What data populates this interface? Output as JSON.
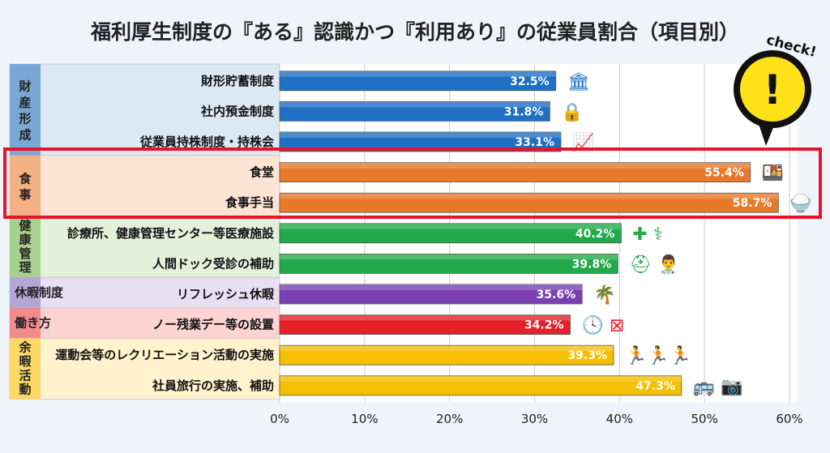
{
  "chart_data": {
    "type": "bar",
    "orientation": "horizontal",
    "title": "福利厚生制度の『ある』認識かつ『利用あり』の従業員割合（項目別）",
    "xlim": [
      0,
      60
    ],
    "xticks": [
      "0%",
      "10%",
      "20%",
      "30%",
      "40%",
      "50%",
      "60%"
    ],
    "grid": true,
    "groups": [
      {
        "name": "財産形成",
        "color": "#1f6fc5",
        "items": [
          {
            "label": "財形貯蓄制度",
            "value": 32.5,
            "icon": "bank-coins-icon"
          },
          {
            "label": "社内預金制度",
            "value": 31.8,
            "icon": "safe-icon"
          },
          {
            "label": "従業員持株制度・持株会",
            "value": 33.1,
            "icon": "stock-chart-icon"
          }
        ]
      },
      {
        "name": "食事",
        "color": "#e8792a",
        "items": [
          {
            "label": "食堂",
            "value": 55.4,
            "icon": "meal-tray-icon"
          },
          {
            "label": "食事手当",
            "value": 58.7,
            "icon": "rice-bowl-yen-icon"
          }
        ]
      },
      {
        "name": "健康管理",
        "color": "#22a94a",
        "items": [
          {
            "label": "診療所、健康管理センター等医療施設",
            "value": 40.2,
            "icon": "medical-cross-stethoscope-icon"
          },
          {
            "label": "人間ドック受診の補助",
            "value": 39.8,
            "icon": "medical-kit-doctor-icon"
          }
        ]
      },
      {
        "name": "休暇制度",
        "color": "#7b3fb3",
        "items": [
          {
            "label": "リフレッシュ休暇",
            "value": 35.6,
            "icon": "palm-tree-icon"
          }
        ]
      },
      {
        "name": "働き方",
        "color": "#e5202a",
        "items": [
          {
            "label": "ノー残業デー等の設置",
            "value": 34.2,
            "icon": "clock-no-overtime-icon"
          }
        ]
      },
      {
        "name": "余暇活動",
        "color": "#f5c000",
        "items": [
          {
            "label": "運動会等のレクリエーション活動の実施",
            "value": 39.3,
            "icon": "runners-icon"
          },
          {
            "label": "社員旅行の実施、補助",
            "value": 47.3,
            "icon": "bus-camera-icon"
          }
        ]
      }
    ],
    "highlight": "食事",
    "annotation": "check!"
  }
}
